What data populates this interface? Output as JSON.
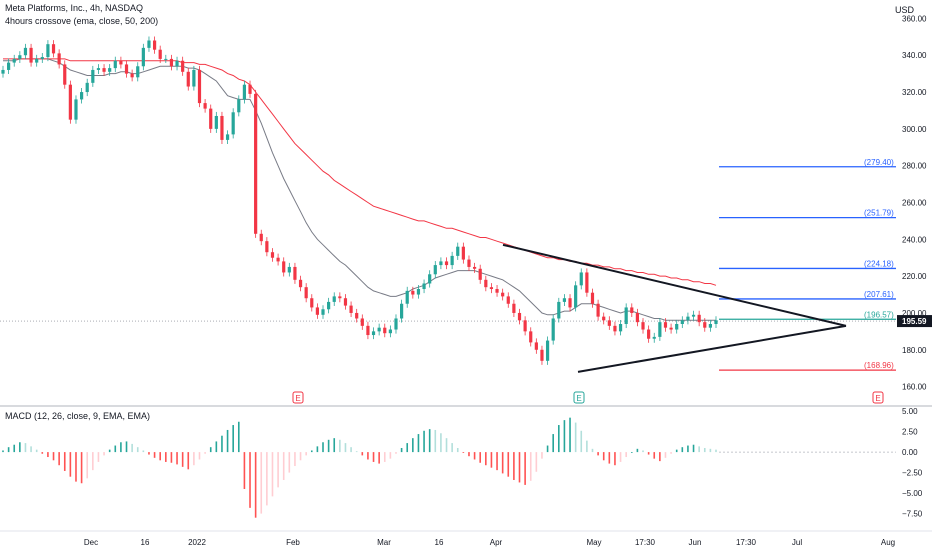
{
  "header": {
    "symbol_title": "Meta Platforms, Inc., 4h, NASDAQ",
    "indicator_title": "4hours crossove (ema, close, 50, 200)",
    "currency": "USD"
  },
  "price_panel": {
    "last_price_label": "195.59",
    "last_price": 195.59,
    "y_range": [
      150,
      370
    ],
    "y_ticks": [
      {
        "label": "360.00",
        "value": 360
      },
      {
        "label": "340.00",
        "value": 340
      },
      {
        "label": "320.00",
        "value": 320
      },
      {
        "label": "300.00",
        "value": 300
      },
      {
        "label": "280.00",
        "value": 280
      },
      {
        "label": "260.00",
        "value": 260
      },
      {
        "label": "240.00",
        "value": 240
      },
      {
        "label": "220.00",
        "value": 220
      },
      {
        "label": "200.00",
        "value": 200
      },
      {
        "label": "180.00",
        "value": 180
      },
      {
        "label": "160.00",
        "value": 160
      }
    ],
    "horizontal_levels": [
      {
        "label": "(279.40)",
        "value": 279.4,
        "color": "#2962ff"
      },
      {
        "label": "(251.79)",
        "value": 251.79,
        "color": "#2962ff"
      },
      {
        "label": "(224.18)",
        "value": 224.18,
        "color": "#2962ff"
      },
      {
        "label": "(207.61)",
        "value": 207.61,
        "color": "#2962ff"
      },
      {
        "label": "(196.57)",
        "value": 196.57,
        "color": "#26a69a"
      },
      {
        "label": "(168.96)",
        "value": 168.96,
        "color": "#f23645"
      }
    ],
    "earnings_markers": [
      {
        "label": "E",
        "date": "Feb",
        "color": "#f23645"
      },
      {
        "label": "E",
        "date": "Apr end",
        "color": "#26a69a"
      },
      {
        "label": "E",
        "date": "Aug",
        "color": "#f23645"
      }
    ]
  },
  "macd_panel": {
    "title": "MACD (12, 26, close, 9, EMA, EMA)",
    "y_range": [
      -9.5,
      5.5
    ],
    "y_ticks": [
      {
        "label": "5.00",
        "value": 5
      },
      {
        "label": "2.50",
        "value": 2.5
      },
      {
        "label": "0.00",
        "value": 0
      },
      {
        "label": "−2.50",
        "value": -2.5
      },
      {
        "label": "−5.00",
        "value": -5
      },
      {
        "label": "−7.50",
        "value": -7.5
      }
    ]
  },
  "x_axis": {
    "ticks": [
      "Dec",
      "16",
      "2022",
      "Feb",
      "Mar",
      "16",
      "Apr",
      "May",
      "17:30",
      "Jun",
      "17:30",
      "Jul",
      "Aug"
    ]
  },
  "chart_data": {
    "type": "line",
    "title": "Meta Platforms, Inc., 4h, NASDAQ",
    "xlabel": "",
    "ylabel": "",
    "ylim": [
      150,
      370
    ],
    "grid": false,
    "series": [
      {
        "name": "",
        "color": "#131722",
        "values": [
          332,
          336,
          338,
          340,
          344,
          336,
          338,
          339,
          346,
          341,
          335,
          324,
          305,
          316,
          320,
          325,
          332,
          333,
          331,
          333,
          337,
          335,
          330,
          328,
          334,
          344,
          348,
          343,
          338,
          338,
          334,
          337,
          331,
          323,
          332,
          314,
          311,
          300,
          307,
          294,
          297,
          309,
          316,
          324,
          319,
          243,
          239,
          233,
          230,
          228,
          222,
          225,
          218,
          214,
          208,
          203,
          199,
          202,
          206,
          209,
          208,
          204,
          200,
          197,
          193,
          188,
          190,
          192,
          189,
          191,
          197,
          205,
          212,
          210,
          213,
          216,
          221,
          226,
          228,
          226,
          231,
          236,
          229,
          225,
          224,
          218,
          214,
          213,
          211,
          209,
          205,
          200,
          196,
          190,
          184,
          180,
          174,
          185,
          197,
          206,
          208,
          203,
          215,
          222,
          211,
          205,
          198,
          196,
          193,
          190,
          194,
          203,
          200,
          195,
          191,
          186,
          187,
          195,
          192,
          191,
          194,
          196,
          198,
          199,
          195,
          192,
          194,
          196
        ]
      },
      {
        "name": "",
        "color": "#787b86",
        "values": [
          337,
          337,
          337,
          338,
          338,
          338,
          338,
          338,
          338,
          337,
          336,
          334,
          332,
          331,
          330,
          329,
          329,
          329,
          329,
          330,
          330,
          331,
          331,
          330,
          330,
          331,
          332,
          333,
          334,
          334,
          334,
          334,
          334,
          333,
          333,
          332,
          330,
          328,
          326,
          322,
          318,
          317,
          316,
          316,
          316,
          310,
          303,
          295,
          287,
          280,
          273,
          267,
          261,
          255,
          249,
          244,
          240,
          237,
          234,
          231,
          228,
          226,
          223,
          220,
          217,
          214,
          212,
          211,
          210,
          209,
          209,
          210,
          211,
          213,
          214,
          215,
          217,
          219,
          220,
          221,
          222,
          223,
          223,
          223,
          223,
          222,
          221,
          220,
          219,
          218,
          216,
          214,
          212,
          209,
          206,
          203,
          200,
          199,
          199,
          200,
          201,
          201,
          203,
          205,
          205,
          205,
          204,
          203,
          202,
          201,
          200,
          201,
          201,
          200,
          199,
          198,
          197,
          197,
          196,
          196,
          196,
          196,
          196,
          196,
          196,
          196,
          196,
          196
        ]
      },
      {
        "name": "",
        "color": "#f23645",
        "values": [
          338,
          338,
          338,
          338,
          338,
          338,
          338,
          338,
          338,
          338,
          338,
          338,
          337,
          337,
          337,
          337,
          337,
          337,
          337,
          337,
          337,
          337,
          337,
          337,
          337,
          337,
          337,
          337,
          337,
          337,
          337,
          337,
          336,
          336,
          336,
          335,
          335,
          334,
          333,
          332,
          330,
          329,
          327,
          326,
          324,
          320,
          316,
          312,
          308,
          304,
          300,
          296,
          292,
          289,
          286,
          283,
          280,
          277,
          275,
          272,
          270,
          268,
          266,
          264,
          262,
          260,
          258,
          257,
          256,
          255,
          254,
          253,
          252,
          251,
          250,
          250,
          249,
          248,
          247,
          246,
          246,
          245,
          244,
          243,
          242,
          241,
          241,
          240,
          239,
          238,
          237,
          236,
          235,
          234,
          233,
          232,
          231,
          230,
          230,
          229,
          229,
          228,
          228,
          227,
          227,
          226,
          226,
          225,
          225,
          224,
          224,
          223,
          223,
          222,
          222,
          221,
          221,
          220,
          220,
          219,
          219,
          218,
          218,
          217,
          217,
          216,
          216,
          215
        ]
      }
    ],
    "macd_histogram": [
      0.2,
      0.6,
      0.9,
      1.2,
      1.1,
      0.7,
      0.3,
      -0.2,
      -0.6,
      -1.0,
      -1.6,
      -2.3,
      -3.0,
      -3.6,
      -3.8,
      -3.2,
      -2.2,
      -1.2,
      -0.4,
      0.3,
      0.8,
      1.2,
      1.3,
      1.0,
      0.6,
      0.2,
      -0.3,
      -0.7,
      -1.0,
      -1.2,
      -1.3,
      -1.5,
      -1.8,
      -2.1,
      -1.6,
      -0.9,
      -0.2,
      0.6,
      1.3,
      2.0,
      2.7,
      3.3,
      3.7,
      -4.5,
      -6.8,
      -8.0,
      -7.5,
      -6.5,
      -5.4,
      -4.3,
      -3.4,
      -2.5,
      -1.7,
      -1.0,
      -0.4,
      0.2,
      0.7,
      1.2,
      1.5,
      1.7,
      1.5,
      1.1,
      0.6,
      0.1,
      -0.4,
      -0.9,
      -1.2,
      -1.4,
      -1.2,
      -0.8,
      -0.2,
      0.5,
      1.1,
      1.7,
      2.2,
      2.6,
      2.8,
      2.7,
      2.3,
      1.7,
      1.1,
      0.5,
      -0.1,
      -0.5,
      -0.9,
      -1.3,
      -1.6,
      -1.9,
      -2.2,
      -2.6,
      -3.0,
      -3.4,
      -3.7,
      -4.0,
      -3.5,
      -2.4,
      -0.8,
      0.8,
      2.2,
      3.3,
      3.9,
      4.2,
      3.6,
      2.6,
      1.4,
      0.4,
      -0.4,
      -1.0,
      -1.4,
      -1.6,
      -1.2,
      -0.6,
      0.0,
      0.4,
      0.2,
      -0.3,
      -0.8,
      -1.1,
      -0.7,
      -0.2,
      0.3,
      0.6,
      0.8,
      0.9,
      0.7,
      0.5,
      0.4,
      0.3
    ],
    "triangle": {
      "upper_line": [
        {
          "x": "Apr",
          "y": 237
        },
        {
          "x": "Jun end",
          "y": 193
        }
      ],
      "lower_line": [
        {
          "x": "Apr end",
          "y": 168
        },
        {
          "x": "Jun end",
          "y": 193
        }
      ]
    }
  }
}
